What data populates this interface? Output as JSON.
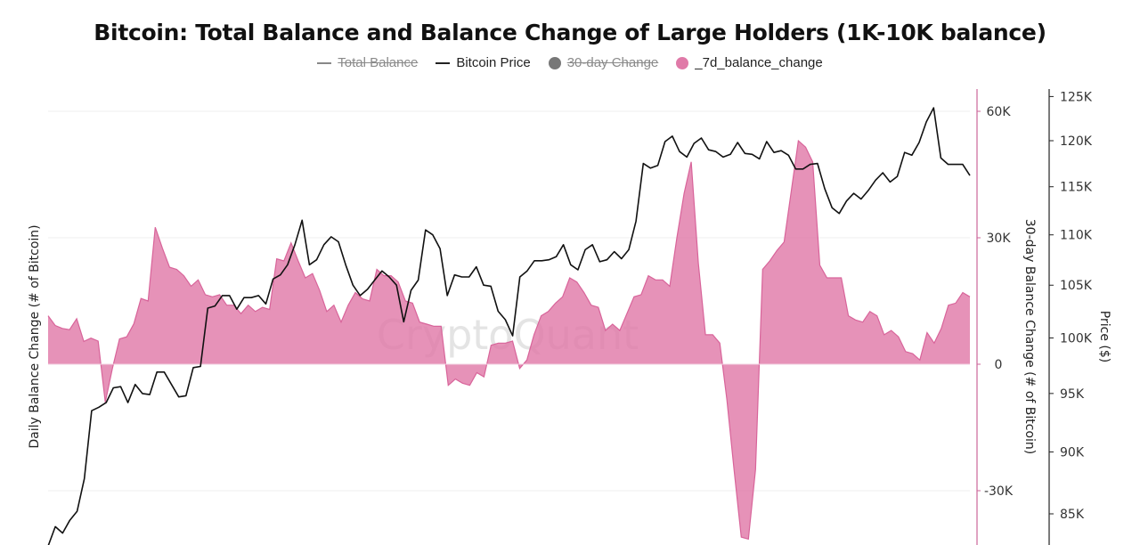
{
  "chart_data": {
    "type": "area",
    "title": "Bitcoin: Total Balance and Balance Change of Large Holders (1K-10K balance)",
    "legend": [
      {
        "name": "Total Balance",
        "style": "line",
        "color": "#888888",
        "hidden": true
      },
      {
        "name": "Bitcoin Price",
        "style": "line",
        "color": "#111111",
        "hidden": false
      },
      {
        "name": "30-day Change",
        "style": "dot",
        "color": "#777777",
        "hidden": true
      },
      {
        "name": "_7d_balance_change",
        "style": "dot",
        "color": "#e07aa8",
        "hidden": false
      }
    ],
    "legend_position": "top-center",
    "watermark": "CryptoQuant",
    "grid": true,
    "axes": {
      "left_label": "Daily Balance Change (# of Bitcoin)",
      "middle_label": "30-day Balance Change (# of Bitcoin)",
      "middle_ticks": [
        60000,
        30000,
        0,
        -30000
      ],
      "middle_tick_labels": [
        "60K",
        "30K",
        "0",
        "-30K"
      ],
      "middle_ylim": [
        -42000,
        65000
      ],
      "right_label": "Price ($)",
      "right_ticks": [
        125000,
        120000,
        115000,
        110000,
        105000,
        100000,
        95000,
        90000,
        85000
      ],
      "right_tick_labels": [
        "125K",
        "120K",
        "115K",
        "110K",
        "105K",
        "100K",
        "95K",
        "90K",
        "85K"
      ],
      "right_scale": "log",
      "right_ylim": [
        82000,
        126500
      ]
    },
    "series": [
      {
        "name": "_7d_balance_change",
        "axis": "middle",
        "color": "#e07aa8",
        "values": [
          11500,
          9200,
          8500,
          8200,
          10800,
          5400,
          6200,
          5500,
          -9000,
          -1000,
          6000,
          6500,
          9600,
          15600,
          15000,
          32500,
          27500,
          23000,
          22500,
          21000,
          18500,
          20000,
          16500,
          16000,
          16500,
          14000,
          14000,
          12000,
          14000,
          12500,
          13500,
          13000,
          25000,
          24500,
          28800,
          24500,
          20500,
          21500,
          17500,
          12500,
          14000,
          10000,
          14000,
          17000,
          15500,
          15000,
          22500,
          21000,
          21000,
          19500,
          15000,
          14500,
          10000,
          9500,
          9000,
          9000,
          -5000,
          -3500,
          -4500,
          -5000,
          -2000,
          -3000,
          4500,
          5000,
          5000,
          5500,
          -1000,
          1000,
          7000,
          11500,
          12500,
          14500,
          16000,
          20500,
          19500,
          17000,
          14000,
          13500,
          8000,
          9500,
          8000,
          12000,
          16000,
          16500,
          21000,
          20000,
          20000,
          18500,
          30000,
          40500,
          48000,
          24000,
          7000,
          7000,
          5000,
          -8500,
          -25000,
          -41000,
          -41500,
          -25000,
          22500,
          24500,
          27000,
          29000,
          41000,
          53000,
          51500,
          48000,
          23500,
          20500,
          20500,
          20500,
          11500,
          10500,
          10000,
          12500,
          11500,
          7000,
          8000,
          6500,
          3000,
          2500,
          1000,
          7500,
          5000,
          8500,
          14000,
          14500,
          17000,
          16000
        ]
      },
      {
        "name": "Bitcoin Price",
        "axis": "right",
        "color": "#111111",
        "values": [
          82500,
          84000,
          83500,
          84500,
          85200,
          87800,
          93500,
          93800,
          94200,
          95500,
          95600,
          94200,
          95800,
          95000,
          94900,
          96900,
          96900,
          95800,
          94700,
          94800,
          97300,
          97400,
          102800,
          103000,
          104000,
          104000,
          102700,
          103800,
          103800,
          104000,
          103200,
          105600,
          106000,
          107000,
          109000,
          111500,
          107000,
          107500,
          109000,
          109800,
          109300,
          107000,
          105000,
          104000,
          104600,
          105500,
          106400,
          105800,
          105000,
          101500,
          104500,
          105500,
          110500,
          110000,
          108600,
          104000,
          106000,
          105800,
          105800,
          106800,
          105000,
          104900,
          102500,
          101700,
          100200,
          105800,
          106400,
          107400,
          107400,
          107500,
          107800,
          109000,
          107000,
          106500,
          108500,
          109000,
          107300,
          107500,
          108300,
          107600,
          108500,
          111400,
          117500,
          117000,
          117300,
          119900,
          120500,
          118800,
          118200,
          119700,
          120300,
          119000,
          118800,
          118200,
          118500,
          119800,
          118600,
          118500,
          118000,
          119900,
          118700,
          118900,
          118400,
          116900,
          116900,
          117400,
          117500,
          114800,
          112800,
          112200,
          113500,
          114300,
          113700,
          114600,
          115700,
          116500,
          115500,
          116100,
          118700,
          118400,
          119800,
          122100,
          123700,
          118100,
          117400,
          117400,
          117400,
          116200
        ]
      }
    ]
  }
}
